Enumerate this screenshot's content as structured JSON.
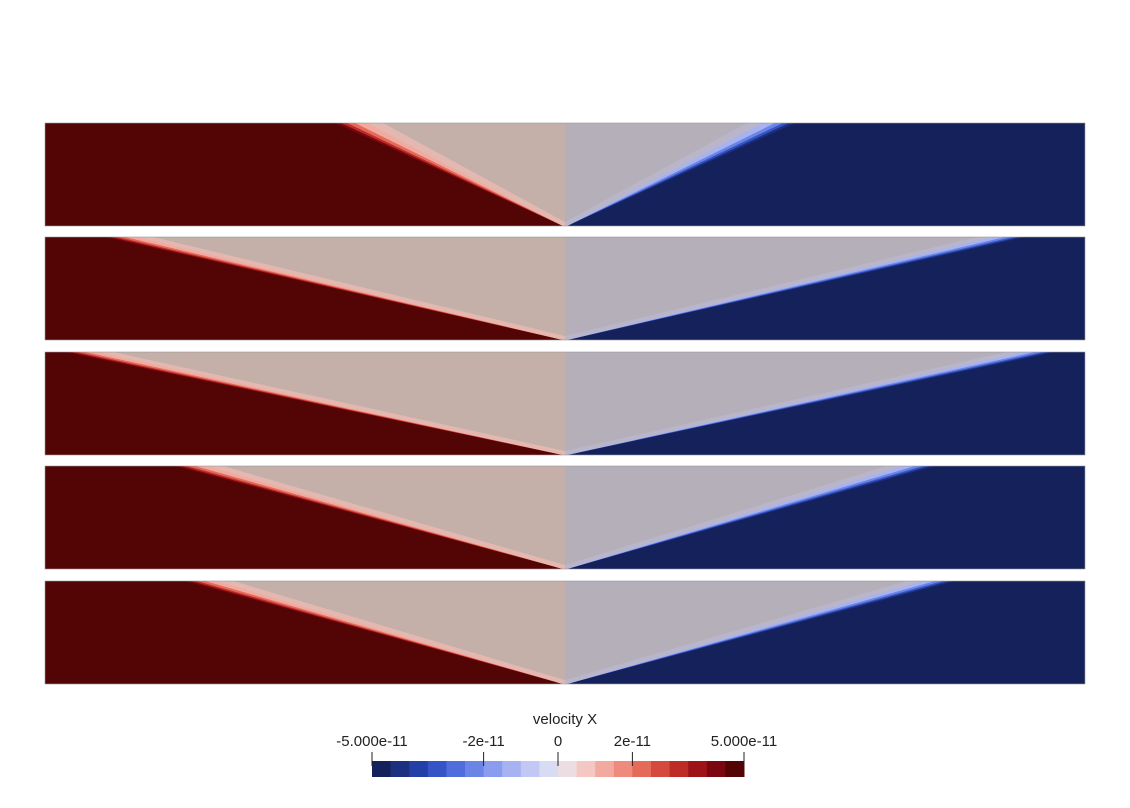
{
  "colorbar": {
    "title": "velocity X",
    "min": -5e-11,
    "max": 5e-11,
    "ticks": [
      {
        "value": -5e-11,
        "label": "-5.000e-11"
      },
      {
        "value": -2e-11,
        "label": "-2e-11"
      },
      {
        "value": 0,
        "label": "0"
      },
      {
        "value": 2e-11,
        "label": "2e-11"
      },
      {
        "value": 5e-11,
        "label": "5.000e-11"
      }
    ],
    "colors": [
      "#15215a",
      "#1d2f80",
      "#2340a6",
      "#3555c7",
      "#4f6edb",
      "#6b85e6",
      "#8a9cef",
      "#a6b2f2",
      "#c0c8f3",
      "#d8dcf3",
      "#ecdde3",
      "#f5c7c3",
      "#f2aaa0",
      "#ee8b7c",
      "#e46a5a",
      "#d44b3e",
      "#bd2c27",
      "#9e1318",
      "#7a0710",
      "#530404"
    ]
  },
  "panels": [
    {
      "left_spread": 115,
      "right_spread": 115
    },
    {
      "left_spread": 230,
      "right_spread": 230
    },
    {
      "left_spread": 250,
      "right_spread": 245
    },
    {
      "left_spread": 195,
      "right_spread": 185
    },
    {
      "left_spread": 190,
      "right_spread": 195
    }
  ]
}
